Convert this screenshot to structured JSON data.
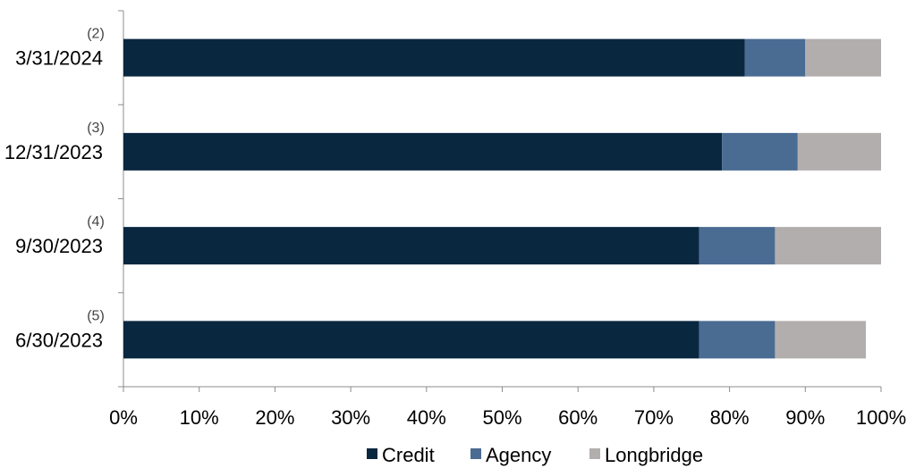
{
  "chart_data": {
    "type": "bar",
    "orientation": "horizontal",
    "stacked": true,
    "categories": [
      "3/31/2024",
      "12/31/2023",
      "9/30/2023",
      "6/30/2023"
    ],
    "footnotes": [
      "(2)",
      "(3)",
      "(4)",
      "(5)"
    ],
    "series": [
      {
        "name": "Credit",
        "color": "#0a2740",
        "values": [
          82,
          79,
          76,
          76
        ]
      },
      {
        "name": "Agency",
        "color": "#4a6b92",
        "values": [
          8,
          10,
          10,
          10
        ]
      },
      {
        "name": "Longbridge",
        "color": "#b3aeae",
        "values": [
          10,
          11,
          14,
          12
        ]
      }
    ],
    "x_ticks": [
      "0%",
      "10%",
      "20%",
      "30%",
      "40%",
      "50%",
      "60%",
      "70%",
      "80%",
      "90%",
      "100%"
    ],
    "xlim": [
      0,
      100
    ],
    "grid": false,
    "legend_position": "bottom"
  }
}
